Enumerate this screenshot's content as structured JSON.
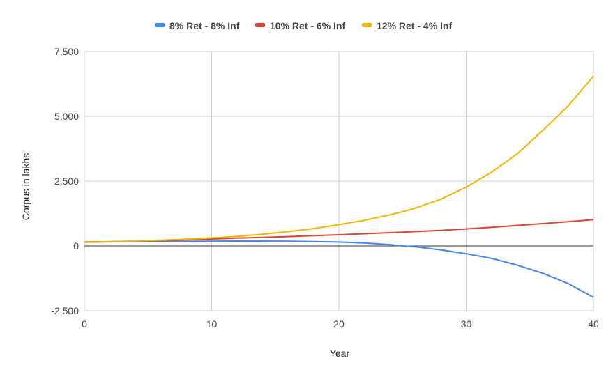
{
  "chart_data": {
    "type": "line",
    "title": "",
    "xlabel": "Year",
    "ylabel": "Corpus in lakhs",
    "xlim": [
      0,
      40
    ],
    "ylim": [
      -2500,
      7500
    ],
    "x_ticks": [
      0,
      10,
      20,
      30,
      40
    ],
    "x_tick_labels": [
      "0",
      "10",
      "20",
      "30",
      "40"
    ],
    "y_ticks": [
      -2500,
      0,
      2500,
      5000,
      7500
    ],
    "y_tick_labels": [
      "-2,500",
      "0",
      "2,500",
      "5,000",
      "7,500"
    ],
    "grid": true,
    "legend_position": "top",
    "x": [
      0,
      2,
      4,
      6,
      8,
      10,
      12,
      14,
      16,
      18,
      20,
      22,
      24,
      25,
      26,
      28,
      30,
      32,
      34,
      36,
      38,
      40
    ],
    "series": [
      {
        "name": "8% Ret - 8% Inf",
        "color": "#4285f4",
        "values": [
          150,
          158,
          166,
          173,
          179,
          184,
          187,
          186,
          181,
          170,
          150,
          115,
          50,
          0,
          -35,
          -150,
          -300,
          -480,
          -740,
          -1050,
          -1450,
          -1980
        ]
      },
      {
        "name": "10% Ret - 6% Inf",
        "color": "#db4437",
        "values": [
          150,
          165,
          185,
          210,
          240,
          270,
          300,
          330,
          360,
          395,
          430,
          470,
          510,
          530,
          555,
          600,
          655,
          720,
          790,
          860,
          935,
          1015
        ]
      },
      {
        "name": "12% Ret - 4% Inf",
        "color": "#f4b400",
        "values": [
          150,
          165,
          190,
          220,
          260,
          310,
          370,
          450,
          550,
          670,
          820,
          990,
          1200,
          1320,
          1460,
          1800,
          2270,
          2850,
          3550,
          4450,
          5400,
          6550
        ]
      }
    ]
  }
}
